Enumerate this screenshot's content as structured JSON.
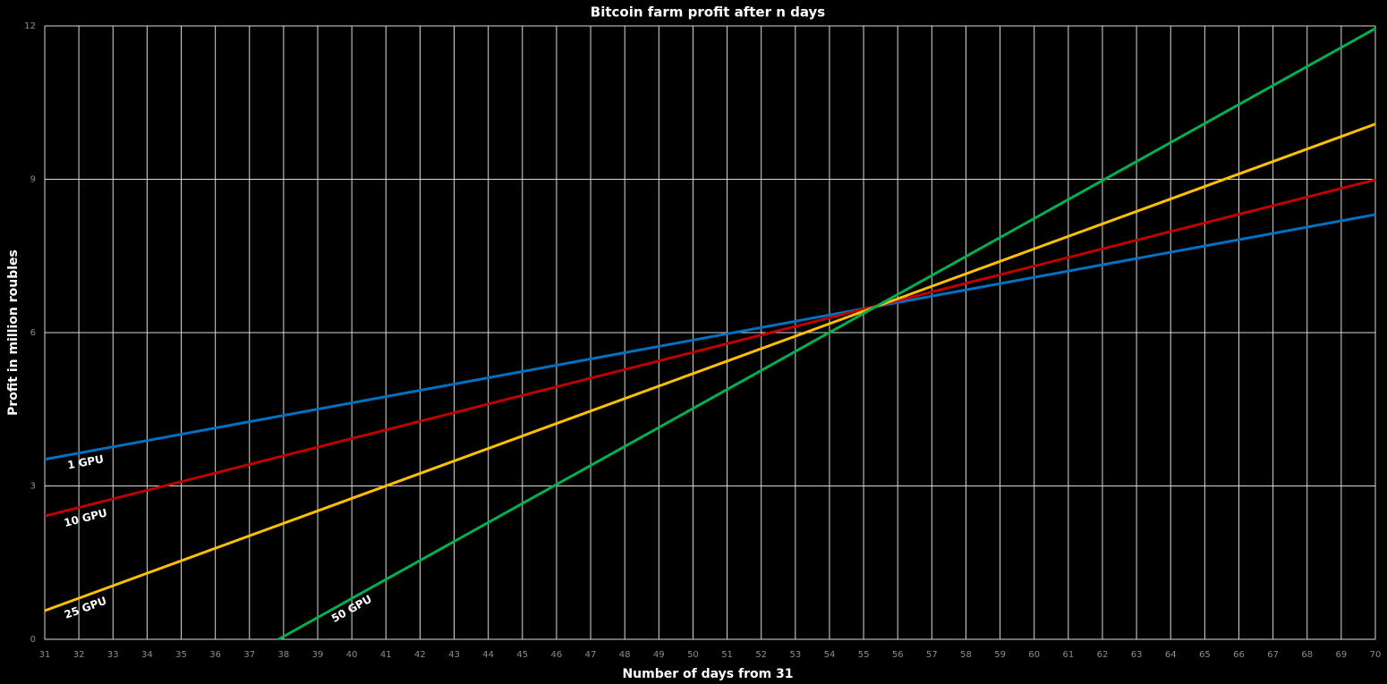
{
  "chart_data": {
    "type": "line",
    "title": "Bitcoin farm profit after n days",
    "x_label": "Number of days from 31",
    "y_label": "Profit in million roubles",
    "xlim": [
      31,
      70
    ],
    "ylim": [
      0,
      12
    ],
    "xticks": [
      31,
      32,
      33,
      34,
      35,
      36,
      37,
      38,
      39,
      40,
      41,
      42,
      43,
      44,
      45,
      46,
      47,
      48,
      49,
      50,
      51,
      52,
      53,
      54,
      55,
      56,
      57,
      58,
      59,
      60,
      61,
      62,
      63,
      64,
      65,
      66,
      67,
      68,
      69,
      70
    ],
    "yticks": [
      0,
      3,
      6,
      9,
      12
    ],
    "grid": true,
    "series": [
      {
        "name": "1 GPU",
        "color": "#0070c0",
        "x": [
          31,
          70
        ],
        "values": [
          3.52,
          8.31
        ]
      },
      {
        "name": "10 GPU",
        "color": "#c00000",
        "x": [
          31,
          70
        ],
        "values": [
          2.41,
          8.99
        ]
      },
      {
        "name": "25 GPU",
        "color": "#ffc000",
        "x": [
          31,
          70
        ],
        "values": [
          0.56,
          10.08
        ]
      },
      {
        "name": "50 GPU",
        "color": "#00b050",
        "x": [
          37.85,
          70
        ],
        "values": [
          0,
          11.95
        ]
      }
    ]
  }
}
